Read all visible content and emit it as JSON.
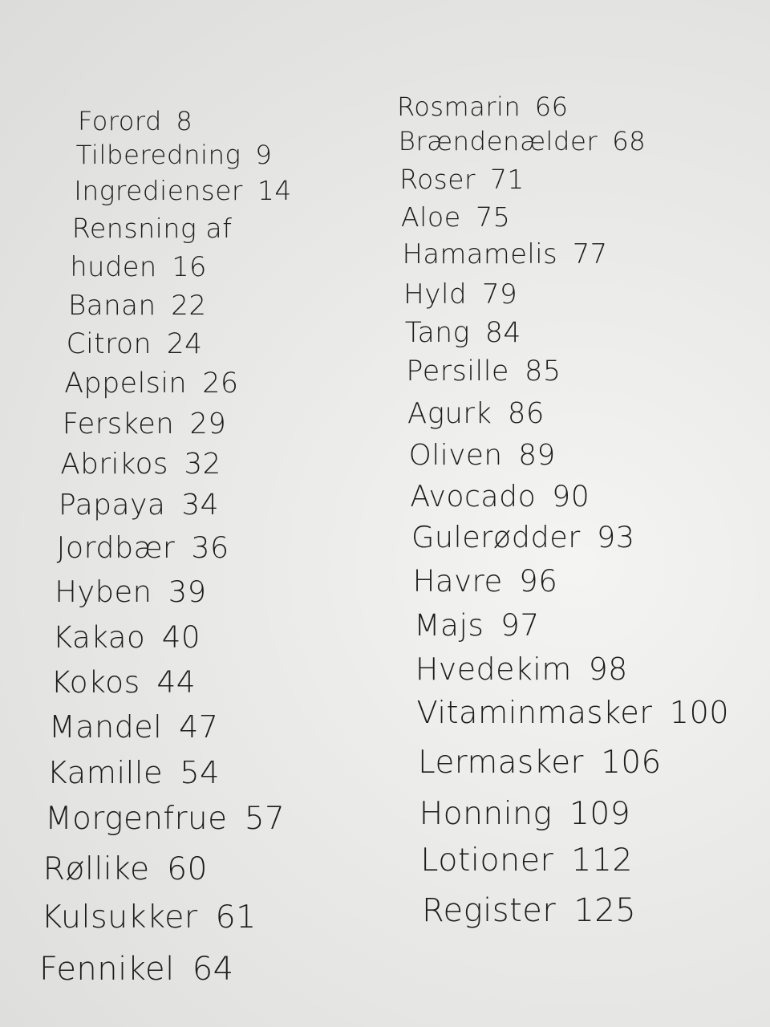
{
  "toc": {
    "left_column": [
      {
        "title": "Forord",
        "page": "8"
      },
      {
        "title": "Tilberedning",
        "page": "9"
      },
      {
        "title": "Ingredienser",
        "page": "14"
      },
      {
        "title": "Rensning af",
        "page": ""
      },
      {
        "title": "huden",
        "page": "16"
      },
      {
        "title": "Banan",
        "page": "22"
      },
      {
        "title": "Citron",
        "page": "24"
      },
      {
        "title": "Appelsin",
        "page": "26"
      },
      {
        "title": "Fersken",
        "page": "29"
      },
      {
        "title": "Abrikos",
        "page": "32"
      },
      {
        "title": "Papaya",
        "page": "34"
      },
      {
        "title": "Jordbær",
        "page": "36"
      },
      {
        "title": "Hyben",
        "page": "39"
      },
      {
        "title": "Kakao",
        "page": "40"
      },
      {
        "title": "Kokos",
        "page": "44"
      },
      {
        "title": "Mandel",
        "page": "47"
      },
      {
        "title": "Kamille",
        "page": "54"
      },
      {
        "title": "Morgenfrue",
        "page": "57"
      },
      {
        "title": "Røllike",
        "page": "60"
      },
      {
        "title": "Kulsukker",
        "page": "61"
      },
      {
        "title": "Fennikel",
        "page": "64"
      }
    ],
    "right_column": [
      {
        "title": "Rosmarin",
        "page": "66"
      },
      {
        "title": "Brændenælder",
        "page": "68"
      },
      {
        "title": "Roser",
        "page": "71"
      },
      {
        "title": "Aloe",
        "page": "75"
      },
      {
        "title": "Hamamelis",
        "page": "77"
      },
      {
        "title": "Hyld",
        "page": "79"
      },
      {
        "title": "Tang",
        "page": "84"
      },
      {
        "title": "Persille",
        "page": "85"
      },
      {
        "title": "Agurk",
        "page": "86"
      },
      {
        "title": "Oliven",
        "page": "89"
      },
      {
        "title": "Avocado",
        "page": "90"
      },
      {
        "title": "Gulerødder",
        "page": "93"
      },
      {
        "title": "Havre",
        "page": "96"
      },
      {
        "title": "Majs",
        "page": "97"
      },
      {
        "title": "Hvedekim",
        "page": "98"
      },
      {
        "title": "Vitaminmasker",
        "page": "100"
      },
      {
        "title": "Lermasker",
        "page": "106"
      },
      {
        "title": "Honning",
        "page": "109"
      },
      {
        "title": "Lotioner",
        "page": "112"
      },
      {
        "title": "Register",
        "page": "125"
      }
    ]
  }
}
